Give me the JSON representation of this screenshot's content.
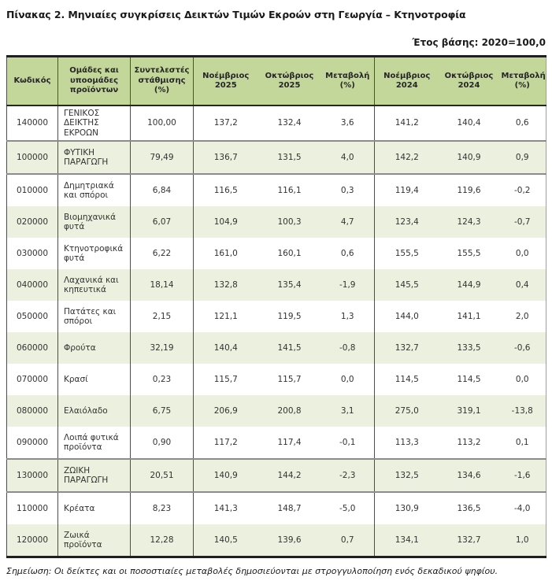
{
  "page": {
    "title": "Πίνακας 2. Μηνιαίες συγκρίσεις Δεικτών Τιμών Εκροών στη Γεωργία – Κτηνοτροφία",
    "base_year_label": "Έτος βάσης: 2020=100,0",
    "footnote": "Σημείωση: Οι δείκτες και οι ποσοστιαίες μεταβολές δημοσιεύονται με στρογγυλοποίηση ενός δεκαδικού ψηφίου."
  },
  "colors": {
    "header_bg": "#c4d79b",
    "row_alt_bg": "#ebf1de",
    "section_border": "#8c8c8c"
  },
  "table": {
    "headers": [
      "Κωδικός",
      "Ομάδες και υποομάδες προϊόντων",
      "Συντελεστές στάθμισης (%)",
      "Νοέμβριος 2025",
      "Οκτώβριος 2025",
      "Μεταβολή (%)",
      "Νοέμβριος 2024",
      "Οκτώβριος 2024",
      "Μεταβολή (%)"
    ],
    "rows": [
      {
        "code": "140000",
        "name": "ΓΕΝΙΚΟΣ ΔΕΙΚΤΗΣ ΕΚΡΟΩΝ",
        "weight": "100,00",
        "nov_2025": "137,2",
        "oct_2025": "132,4",
        "chg_2025": "3,6",
        "nov_2024": "141,2",
        "oct_2024": "140,4",
        "chg_2024": "0,6",
        "section": false
      },
      {
        "code": "100000",
        "name": "ΦΥΤΙΚΗ ΠΑΡΑΓΩΓΗ",
        "weight": "79,49",
        "nov_2025": "136,7",
        "oct_2025": "131,5",
        "chg_2025": "4,0",
        "nov_2024": "142,2",
        "oct_2024": "140,9",
        "chg_2024": "0,9",
        "section": true
      },
      {
        "code": "010000",
        "name": "Δημητριακά και σπόροι",
        "weight": "6,84",
        "nov_2025": "116,5",
        "oct_2025": "116,1",
        "chg_2025": "0,3",
        "nov_2024": "119,4",
        "oct_2024": "119,6",
        "chg_2024": "-0,2",
        "section": false
      },
      {
        "code": "020000",
        "name": "Βιομηχανικά φυτά",
        "weight": "6,07",
        "nov_2025": "104,9",
        "oct_2025": "100,3",
        "chg_2025": "4,7",
        "nov_2024": "123,4",
        "oct_2024": "124,3",
        "chg_2024": "-0,7",
        "section": false
      },
      {
        "code": "030000",
        "name": "Κτηνοτροφικά φυτά",
        "weight": "6,22",
        "nov_2025": "161,0",
        "oct_2025": "160,1",
        "chg_2025": "0,6",
        "nov_2024": "155,5",
        "oct_2024": "155,5",
        "chg_2024": "0,0",
        "section": false
      },
      {
        "code": "040000",
        "name": "Λαχανικά και κηπευτικά",
        "weight": "18,14",
        "nov_2025": "132,8",
        "oct_2025": "135,4",
        "chg_2025": "-1,9",
        "nov_2024": "145,5",
        "oct_2024": "144,9",
        "chg_2024": "0,4",
        "section": false
      },
      {
        "code": "050000",
        "name": "Πατάτες και σπόροι",
        "weight": "2,15",
        "nov_2025": "121,1",
        "oct_2025": "119,5",
        "chg_2025": "1,3",
        "nov_2024": "144,0",
        "oct_2024": "141,1",
        "chg_2024": "2,0",
        "section": false
      },
      {
        "code": "060000",
        "name": "Φρούτα",
        "weight": "32,19",
        "nov_2025": "140,4",
        "oct_2025": "141,5",
        "chg_2025": "-0,8",
        "nov_2024": "132,7",
        "oct_2024": "133,5",
        "chg_2024": "-0,6",
        "section": false
      },
      {
        "code": "070000",
        "name": "Κρασί",
        "weight": "0,23",
        "nov_2025": "115,7",
        "oct_2025": "115,7",
        "chg_2025": "0,0",
        "nov_2024": "114,5",
        "oct_2024": "114,5",
        "chg_2024": "0,0",
        "section": false
      },
      {
        "code": "080000",
        "name": "Ελαιόλαδο",
        "weight": "6,75",
        "nov_2025": "206,9",
        "oct_2025": "200,8",
        "chg_2025": "3,1",
        "nov_2024": "275,0",
        "oct_2024": "319,1",
        "chg_2024": "-13,8",
        "section": false
      },
      {
        "code": "090000",
        "name": "Λοιπά φυτικά προϊόντα",
        "weight": "0,90",
        "nov_2025": "117,2",
        "oct_2025": "117,4",
        "chg_2025": "-0,1",
        "nov_2024": "113,3",
        "oct_2024": "113,2",
        "chg_2024": "0,1",
        "section": false
      },
      {
        "code": "130000",
        "name": "ΖΩΙΚΗ ΠΑΡΑΓΩΓΗ",
        "weight": "20,51",
        "nov_2025": "140,9",
        "oct_2025": "144,2",
        "chg_2025": "-2,3",
        "nov_2024": "132,5",
        "oct_2024": "134,6",
        "chg_2024": "-1,6",
        "section": true
      },
      {
        "code": "110000",
        "name": "Κρέατα",
        "weight": "8,23",
        "nov_2025": "141,3",
        "oct_2025": "148,7",
        "chg_2025": "-5,0",
        "nov_2024": "130,9",
        "oct_2024": "136,5",
        "chg_2024": "-4,0",
        "section": false
      },
      {
        "code": "120000",
        "name": "Ζωικά προϊόντα",
        "weight": "12,28",
        "nov_2025": "140,5",
        "oct_2025": "139,6",
        "chg_2025": "0,7",
        "nov_2024": "134,1",
        "oct_2024": "132,7",
        "chg_2024": "1,0",
        "section": false
      }
    ]
  }
}
